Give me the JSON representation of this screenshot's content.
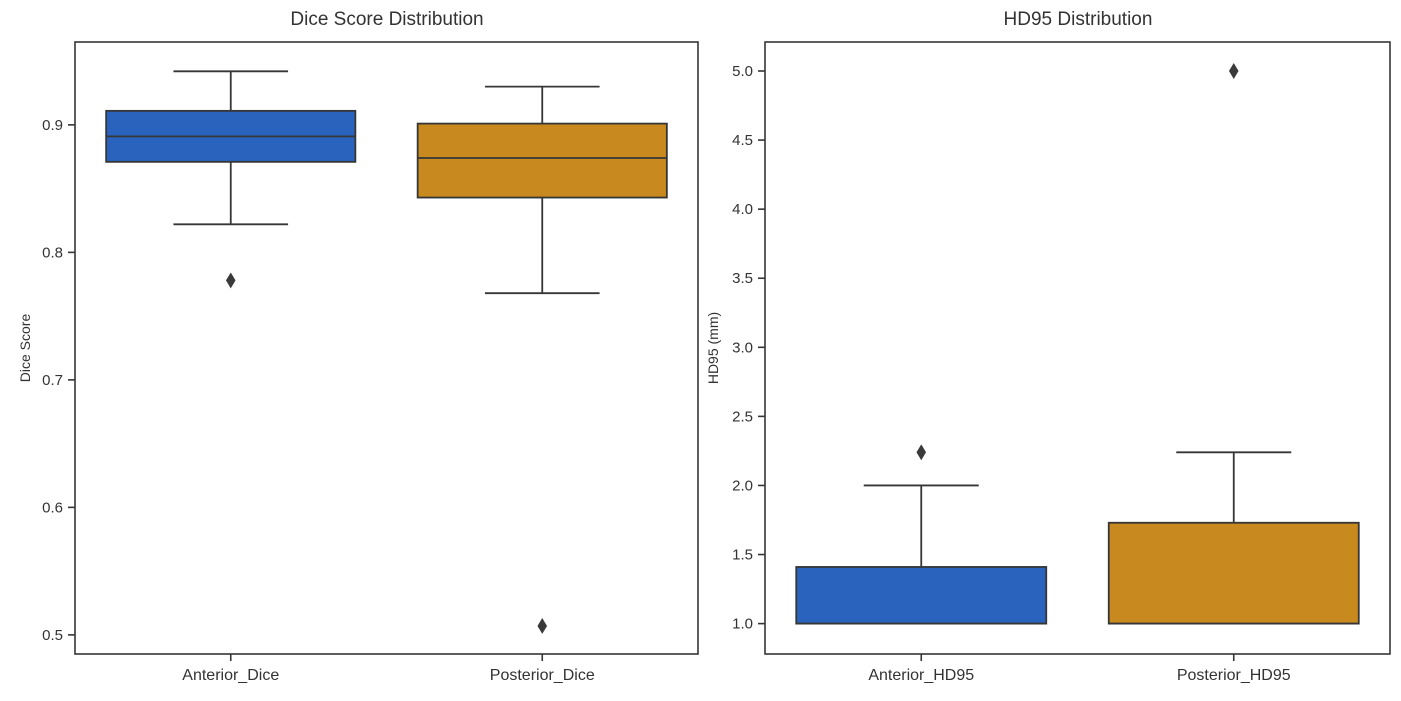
{
  "figure": {
    "background_color": "#ffffff",
    "line_color": "#363636",
    "text_color": "#333333",
    "palette": {
      "blue": "#2963bd",
      "orange": "#c8891e"
    }
  },
  "chart_data": [
    {
      "type": "box",
      "title": "Dice Score Distribution",
      "xlabel": "",
      "ylabel": "Dice Score",
      "ylim": [
        0.485,
        0.965
      ],
      "yticks": [
        0.5,
        0.6,
        0.7,
        0.8,
        0.9
      ],
      "ytick_labels": [
        "0.5",
        "0.6",
        "0.7",
        "0.8",
        "0.9"
      ],
      "categories": [
        "Anterior_Dice",
        "Posterior_Dice"
      ],
      "grid": false,
      "legend": "none",
      "boxes": [
        {
          "label": "Anterior_Dice",
          "color": "#2963bd",
          "whisker_low": 0.822,
          "q1": 0.871,
          "median": 0.891,
          "q3": 0.911,
          "whisker_high": 0.942,
          "outliers": [
            0.778
          ]
        },
        {
          "label": "Posterior_Dice",
          "color": "#c8891e",
          "whisker_low": 0.768,
          "q1": 0.843,
          "median": 0.874,
          "q3": 0.901,
          "whisker_high": 0.93,
          "outliers": [
            0.507
          ]
        }
      ]
    },
    {
      "type": "box",
      "title": "HD95 Distribution",
      "xlabel": "",
      "ylabel": "HD95 (mm)",
      "ylim": [
        0.78,
        5.21
      ],
      "yticks": [
        1.0,
        1.5,
        2.0,
        2.5,
        3.0,
        3.5,
        4.0,
        4.5,
        5.0
      ],
      "ytick_labels": [
        "1.0",
        "1.5",
        "2.0",
        "2.5",
        "3.0",
        "3.5",
        "4.0",
        "4.5",
        "5.0"
      ],
      "categories": [
        "Anterior_HD95",
        "Posterior_HD95"
      ],
      "grid": false,
      "legend": "none",
      "boxes": [
        {
          "label": "Anterior_HD95",
          "color": "#2963bd",
          "whisker_low": 1.0,
          "q1": 1.0,
          "median": 1.0,
          "q3": 1.41,
          "whisker_high": 2.0,
          "outliers": [
            2.24
          ]
        },
        {
          "label": "Posterior_HD95",
          "color": "#c8891e",
          "whisker_low": 1.0,
          "q1": 1.0,
          "median": 1.0,
          "q3": 1.73,
          "whisker_high": 2.24,
          "outliers": [
            5.0
          ]
        }
      ]
    }
  ]
}
